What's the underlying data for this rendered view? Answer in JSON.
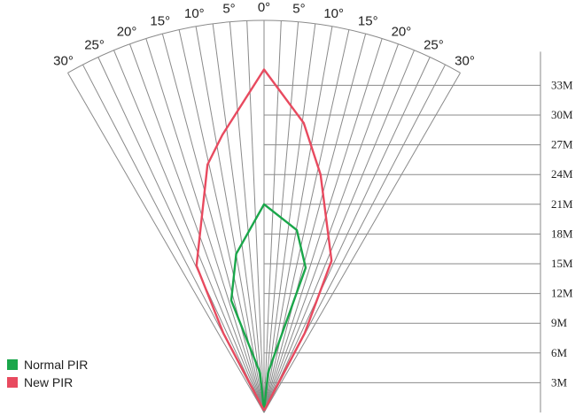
{
  "chart_data": {
    "type": "line",
    "angle_tick_labels": [
      "30°",
      "25°",
      "20°",
      "15°",
      "10°",
      "5°",
      "0°",
      "5°",
      "10°",
      "15°",
      "20°",
      "25°",
      "30°"
    ],
    "distance_tick_labels": [
      "3M",
      "6M",
      "9M",
      "12M",
      "15M",
      "18M",
      "21M",
      "24M",
      "27M",
      "30M",
      "33M"
    ],
    "series": [
      {
        "name": "Normal PIR",
        "color": "#1aa64a",
        "x": [
          0,
          -0.4,
          -3.3,
          -2.8,
          0.0,
          3.3,
          4.2,
          0.4,
          0
        ],
        "y": [
          0.2,
          4.0,
          11.3,
          16.0,
          21.0,
          18.4,
          14.6,
          4.0,
          0.2
        ]
      },
      {
        "name": "New PIR",
        "color": "#e84a5f",
        "x": [
          0,
          -4.1,
          -6.8,
          -5.7,
          -4.2,
          0.0,
          4.0,
          5.7,
          6.8,
          4.1,
          0
        ],
        "y": [
          0.2,
          8.0,
          14.8,
          25.0,
          28.0,
          34.6,
          29.2,
          24.0,
          15.3,
          8.0,
          0.2
        ]
      }
    ],
    "xlim": [
      -30,
      30
    ],
    "ylim": [
      0,
      33
    ],
    "grid": true,
    "legend_position": "bottom-left"
  }
}
